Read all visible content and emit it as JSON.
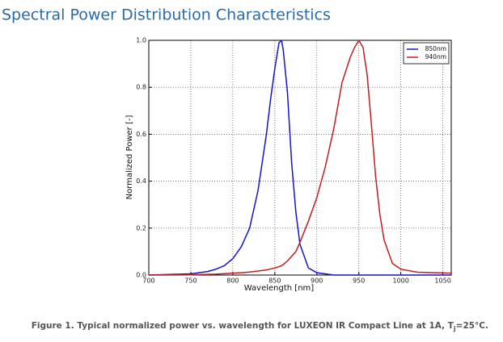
{
  "chart_data": {
    "type": "line",
    "title": "Spectral Power Distribution Characteristics",
    "x_label": "Wavelength [nm]",
    "y_label": "Normalized Power [-]",
    "caption": [
      "Figure 1. Typical normalized power vs. wavelength for LUXEON IR Compact Line at 1A, T",
      "j",
      "=25°C."
    ],
    "x": [
      700,
      750,
      770,
      780,
      790,
      800,
      810,
      820,
      830,
      840,
      845,
      850,
      855,
      858,
      860,
      865,
      870,
      875,
      880,
      890,
      900,
      910,
      920,
      930,
      940,
      945,
      950,
      955,
      960,
      965,
      970,
      975,
      980,
      990,
      1000,
      1020,
      1060
    ],
    "series": [
      {
        "name": "850nm",
        "color": "#1515c8",
        "values": [
          0,
          0.005,
          0.015,
          0.025,
          0.04,
          0.07,
          0.12,
          0.2,
          0.36,
          0.6,
          0.75,
          0.88,
          0.99,
          1.0,
          0.96,
          0.78,
          0.48,
          0.27,
          0.13,
          0.03,
          0.01,
          0.005,
          0,
          0,
          0,
          0,
          0,
          0,
          0,
          0,
          0,
          0,
          0,
          0,
          0,
          0,
          0
        ]
      },
      {
        "name": "940nm",
        "color": "#c01f1f",
        "values": [
          0,
          0.001,
          0.003,
          0.004,
          0.006,
          0.008,
          0.01,
          0.013,
          0.017,
          0.022,
          0.026,
          0.03,
          0.036,
          0.04,
          0.045,
          0.06,
          0.08,
          0.1,
          0.14,
          0.23,
          0.33,
          0.46,
          0.62,
          0.82,
          0.93,
          0.97,
          1.0,
          0.97,
          0.85,
          0.64,
          0.42,
          0.26,
          0.15,
          0.05,
          0.025,
          0.012,
          0.008
        ]
      }
    ],
    "xlim": [
      700,
      1060
    ],
    "xticks": [
      700,
      750,
      800,
      850,
      900,
      950,
      1000,
      1050
    ],
    "ylim": [
      0,
      1
    ],
    "yticks": [
      {
        "value": 0,
        "label": "0.0"
      },
      0.2,
      0.4,
      0.6,
      0.8,
      {
        "value": 1,
        "label": "1.0"
      }
    ],
    "grid": true,
    "legend": "upper right"
  }
}
